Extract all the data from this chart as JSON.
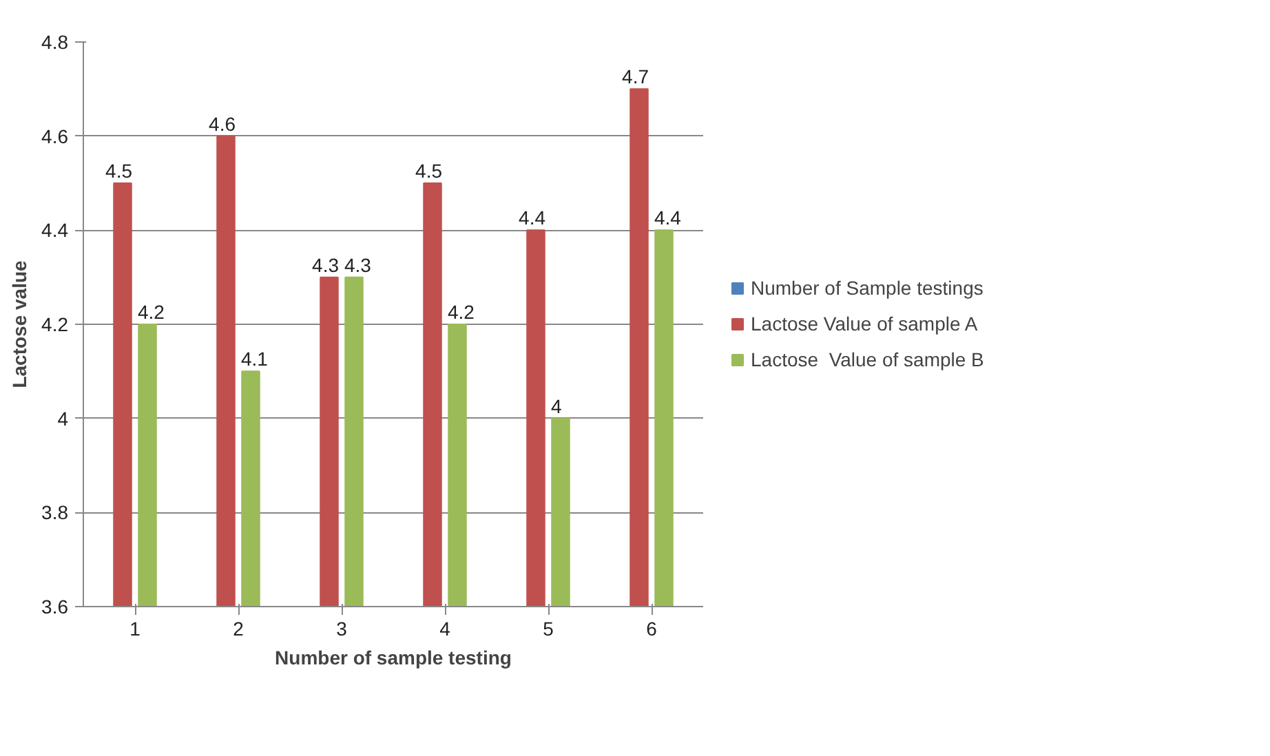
{
  "chart_data": {
    "type": "bar",
    "xlabel": "Number of sample testing",
    "ylabel": "Lactose value",
    "categories": [
      "1",
      "2",
      "3",
      "4",
      "5",
      "6"
    ],
    "series": [
      {
        "name": "Number of Sample testings",
        "color": "#4f81bd",
        "values": [
          null,
          null,
          null,
          null,
          null,
          null
        ]
      },
      {
        "name": "Lactose Value of sample A",
        "color": "#c0504d",
        "values": [
          4.5,
          4.6,
          4.3,
          4.5,
          4.4,
          4.7
        ]
      },
      {
        "name": "Lactose  Value of sample B",
        "color": "#9bbb59",
        "values": [
          4.2,
          4.1,
          4.3,
          4.2,
          4,
          4.4
        ]
      }
    ],
    "ylim": [
      3.6,
      4.8
    ],
    "yticks": [
      3.6,
      3.8,
      4,
      4.2,
      4.4,
      4.6,
      4.8
    ],
    "grid": "y",
    "legend": "right",
    "data_labels": true
  }
}
